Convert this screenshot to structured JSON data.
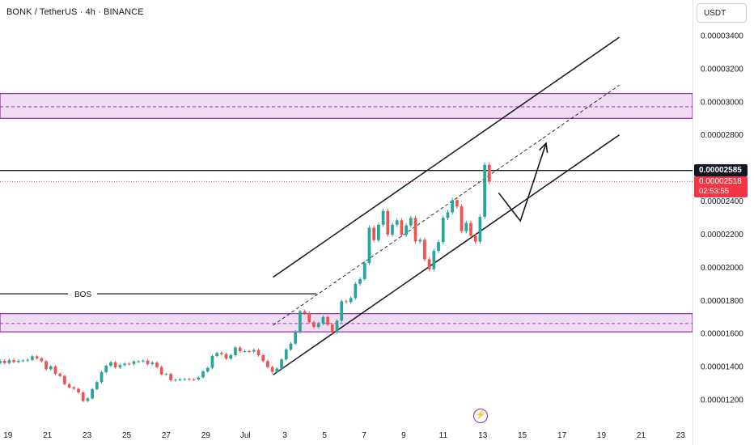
{
  "header": {
    "title": "BONK / TetherUS · 4h · BINANCE",
    "currency": "USDT"
  },
  "price_labels": {
    "last_close_level": "0.00002585",
    "current_price": "0.00002518",
    "countdown": "02:53:55"
  },
  "annotations": {
    "bos_label": "BOS"
  },
  "colors": {
    "up": "#26a69a",
    "down": "#ef5350",
    "zone_fill": "#e1bee7",
    "zone_border": "#9c27b0",
    "current_price": "#f23645"
  },
  "icons": {
    "bolt": "lightning-icon"
  },
  "chart_data": {
    "type": "candlestick",
    "title": "BONK / TetherUS · 4h · BINANCE",
    "y_axis": {
      "ticks": [
        "0.00003400",
        "0.00003200",
        "0.00003000",
        "0.00002800",
        "0.00002600",
        "0.00002400",
        "0.00002200",
        "0.00002000",
        "0.00001800",
        "0.00001600",
        "0.00001400",
        "0.00001200"
      ],
      "ylim": [
        1.12e-05,
        3.58e-05
      ]
    },
    "x_axis": {
      "ticks": [
        "19",
        "21",
        "23",
        "25",
        "27",
        "29",
        "Jul",
        "3",
        "5",
        "7",
        "9",
        "11",
        "13",
        "15",
        "17",
        "19",
        "21",
        "23"
      ],
      "tick_days": [
        -12,
        -10,
        -8,
        -6,
        -4,
        -2,
        0,
        2,
        4,
        6,
        8,
        10,
        12,
        14,
        16,
        18,
        20,
        22
      ],
      "xlim": [
        -12.4,
        22.6
      ]
    },
    "zones": [
      {
        "low": 2.9e-05,
        "high": 3.05e-05,
        "mid": 2.97e-05
      },
      {
        "low": 1.61e-05,
        "high": 1.72e-05,
        "mid": 1.66e-05
      }
    ],
    "horizontal_lines": [
      {
        "price": 2.585e-05,
        "style": "solid"
      },
      {
        "price": 2.518e-05,
        "style": "dotted"
      }
    ],
    "bos": {
      "price": 1.84e-05,
      "x_start": -12.4,
      "x_end": 3.6
    },
    "channel": {
      "upper": [
        [
          1.4,
          1.94e-05
        ],
        [
          18.9,
          3.39e-05
        ]
      ],
      "lower": [
        [
          1.4,
          1.35e-05
        ],
        [
          18.9,
          2.8e-05
        ]
      ],
      "mid": [
        [
          1.4,
          1.65e-05
        ],
        [
          18.9,
          3.1e-05
        ]
      ]
    },
    "projection": [
      [
        12.8,
        2.45e-05
      ],
      [
        13.9,
        2.28e-05
      ],
      [
        15.2,
        2.75e-05
      ]
    ],
    "candles_close": [
      1.435e-05,
      1.421e-05,
      1.44e-05,
      1.428e-05,
      1.435e-05,
      1.437e-05,
      1.441e-05,
      1.462e-05,
      1.45e-05,
      1.432e-05,
      1.384e-05,
      1.401e-05,
      1.356e-05,
      1.343e-05,
      1.294e-05,
      1.275e-05,
      1.266e-05,
      1.244e-05,
      1.192e-05,
      1.208e-05,
      1.264e-05,
      1.306e-05,
      1.366e-05,
      1.405e-05,
      1.426e-05,
      1.395e-05,
      1.409e-05,
      1.418e-05,
      1.416e-05,
      1.431e-05,
      1.431e-05,
      1.436e-05,
      1.415e-05,
      1.424e-05,
      1.397e-05,
      1.353e-05,
      1.356e-05,
      1.317e-05,
      1.32e-05,
      1.322e-05,
      1.325e-05,
      1.323e-05,
      1.322e-05,
      1.335e-05,
      1.371e-05,
      1.392e-05,
      1.464e-05,
      1.482e-05,
      1.475e-05,
      1.448e-05,
      1.469e-05,
      1.515e-05,
      1.493e-05,
      1.493e-05,
      1.491e-05,
      1.5e-05,
      1.469e-05,
      1.434e-05,
      1.397e-05,
      1.368e-05,
      1.388e-05,
      1.443e-05,
      1.503e-05,
      1.539e-05,
      1.61e-05,
      1.734e-05,
      1.722e-05,
      1.668e-05,
      1.64e-05,
      1.661e-05,
      1.7e-05,
      1.654e-05,
      1.607e-05,
      1.677e-05,
      1.795e-05,
      1.79e-05,
      1.814e-05,
      1.9e-05,
      1.929e-05,
      2.025e-05,
      2.239e-05,
      2.164e-05,
      2.257e-05,
      2.34e-05,
      2.197e-05,
      2.257e-05,
      2.284e-05,
      2.196e-05,
      2.253e-05,
      2.298e-05,
      2.156e-05,
      2.166e-05,
      2.048e-05,
      1.988e-05,
      2.099e-05,
      2.153e-05,
      2.299e-05,
      2.332e-05,
      2.406e-05,
      2.368e-05,
      2.218e-05,
      2.268e-05,
      2.191e-05,
      2.155e-05,
      2.305e-05,
      2.619e-05,
      2.518e-05
    ],
    "candles_open": [
      1.42e-05,
      1.435e-05,
      1.421e-05,
      1.44e-05,
      1.428e-05,
      1.435e-05,
      1.437e-05,
      1.441e-05,
      1.462e-05,
      1.45e-05,
      1.432e-05,
      1.384e-05,
      1.401e-05,
      1.356e-05,
      1.343e-05,
      1.294e-05,
      1.275e-05,
      1.266e-05,
      1.244e-05,
      1.192e-05,
      1.208e-05,
      1.264e-05,
      1.306e-05,
      1.366e-05,
      1.405e-05,
      1.426e-05,
      1.395e-05,
      1.409e-05,
      1.418e-05,
      1.416e-05,
      1.431e-05,
      1.431e-05,
      1.436e-05,
      1.415e-05,
      1.424e-05,
      1.397e-05,
      1.353e-05,
      1.356e-05,
      1.317e-05,
      1.32e-05,
      1.322e-05,
      1.325e-05,
      1.323e-05,
      1.322e-05,
      1.335e-05,
      1.371e-05,
      1.392e-05,
      1.464e-05,
      1.482e-05,
      1.475e-05,
      1.448e-05,
      1.469e-05,
      1.515e-05,
      1.493e-05,
      1.493e-05,
      1.491e-05,
      1.5e-05,
      1.469e-05,
      1.434e-05,
      1.397e-05,
      1.368e-05,
      1.388e-05,
      1.443e-05,
      1.503e-05,
      1.539e-05,
      1.61e-05,
      1.734e-05,
      1.722e-05,
      1.668e-05,
      1.64e-05,
      1.661e-05,
      1.7e-05,
      1.654e-05,
      1.607e-05,
      1.677e-05,
      1.795e-05,
      1.79e-05,
      1.814e-05,
      1.9e-05,
      1.929e-05,
      2.025e-05,
      2.239e-05,
      2.164e-05,
      2.257e-05,
      2.34e-05,
      2.197e-05,
      2.257e-05,
      2.284e-05,
      2.196e-05,
      2.253e-05,
      2.298e-05,
      2.156e-05,
      2.166e-05,
      2.048e-05,
      1.988e-05,
      2.099e-05,
      2.153e-05,
      2.299e-05,
      2.332e-05,
      2.406e-05,
      2.368e-05,
      2.218e-05,
      2.268e-05,
      2.191e-05,
      2.155e-05,
      2.305e-05,
      2.619e-05
    ],
    "candles_start_day": -12.4,
    "candles_step_days": 0.2333
  }
}
